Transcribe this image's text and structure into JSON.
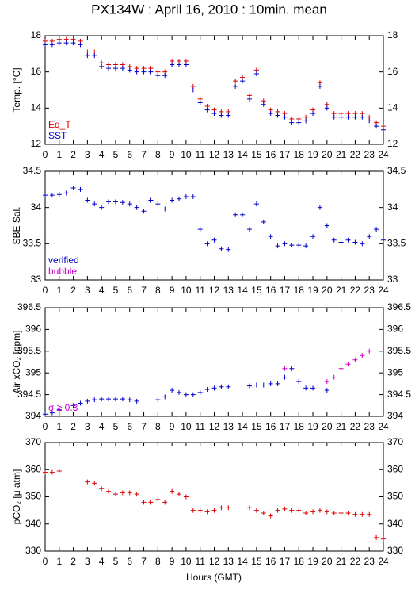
{
  "chart_data": [
    {
      "type": "scatter",
      "title": "PX134W : April 16, 2010 : 10min. mean",
      "ylabel": "Temp. [°C]",
      "x": [
        0,
        0.5,
        1,
        1.5,
        2,
        2.5,
        3,
        3.5,
        4,
        4.5,
        5,
        5.5,
        6,
        6.5,
        7,
        7.5,
        8,
        8.5,
        9,
        9.5,
        10,
        10.5,
        11,
        11.5,
        12,
        12.5,
        13,
        13.5,
        14,
        14.5,
        15,
        15.5,
        16,
        16.5,
        17,
        17.5,
        18,
        18.5,
        19,
        19.5,
        20,
        20.5,
        21,
        21.5,
        22,
        22.5,
        23,
        23.5,
        24
      ],
      "xlim": [
        0,
        24
      ],
      "xticks": [
        0,
        1,
        2,
        3,
        4,
        5,
        6,
        7,
        8,
        9,
        10,
        11,
        12,
        13,
        14,
        15,
        16,
        17,
        18,
        19,
        20,
        21,
        22,
        23,
        24
      ],
      "ylim": [
        12,
        18
      ],
      "yticks": [
        12,
        14,
        16,
        18
      ],
      "series": [
        {
          "name": "Eq_T",
          "color": "#dd0000",
          "values": [
            17.7,
            17.7,
            17.8,
            17.8,
            17.8,
            17.7,
            17.1,
            17.1,
            16.5,
            16.4,
            16.4,
            16.4,
            16.3,
            16.2,
            16.2,
            16.2,
            16.0,
            16.0,
            16.6,
            16.6,
            16.6,
            15.2,
            14.5,
            14.1,
            13.9,
            13.8,
            13.8,
            15.5,
            15.7,
            14.7,
            16.1,
            14.4,
            13.9,
            13.8,
            13.7,
            13.4,
            13.4,
            13.5,
            13.9,
            15.4,
            14.2,
            13.7,
            13.7,
            13.7,
            13.7,
            13.7,
            13.5,
            13.2,
            13.0
          ]
        },
        {
          "name": "SST",
          "color": "#0000cc",
          "values": [
            17.5,
            17.5,
            17.6,
            17.6,
            17.6,
            17.5,
            16.9,
            16.9,
            16.3,
            16.2,
            16.2,
            16.2,
            16.1,
            16.0,
            16.0,
            16.0,
            15.8,
            15.8,
            16.4,
            16.4,
            16.4,
            15.0,
            14.3,
            13.9,
            13.7,
            13.6,
            13.6,
            15.2,
            15.5,
            14.5,
            15.9,
            14.2,
            13.7,
            13.6,
            13.5,
            13.2,
            13.2,
            13.3,
            13.7,
            15.2,
            14.0,
            13.5,
            13.5,
            13.5,
            13.5,
            13.5,
            13.3,
            13.0,
            12.8
          ]
        }
      ]
    },
    {
      "type": "scatter",
      "ylabel": "SBE Sal.",
      "x": [
        0,
        0.5,
        1,
        1.5,
        2,
        2.5,
        3,
        3.5,
        4,
        4.5,
        5,
        5.5,
        6,
        6.5,
        7,
        7.5,
        8,
        8.5,
        9,
        9.5,
        10,
        10.5,
        11,
        11.5,
        12,
        12.5,
        13,
        13.5,
        14,
        14.5,
        15,
        15.5,
        16,
        16.5,
        17,
        17.5,
        18,
        18.5,
        19,
        19.5,
        20,
        20.5,
        21,
        21.5,
        22,
        22.5,
        23,
        23.5,
        24
      ],
      "xlim": [
        0,
        24
      ],
      "xticks": [
        0,
        1,
        2,
        3,
        4,
        5,
        6,
        7,
        8,
        9,
        10,
        11,
        12,
        13,
        14,
        15,
        16,
        17,
        18,
        19,
        20,
        21,
        22,
        23,
        24
      ],
      "ylim": [
        33,
        34.5
      ],
      "yticks": [
        33,
        33.5,
        34,
        34.5
      ],
      "series": [
        {
          "name": "verified",
          "color": "#0000cc",
          "values": [
            34.17,
            34.17,
            34.18,
            34.2,
            34.27,
            34.25,
            34.1,
            34.05,
            34.0,
            34.08,
            34.08,
            34.07,
            34.05,
            34.0,
            33.95,
            34.1,
            34.05,
            33.98,
            34.1,
            34.12,
            34.15,
            34.15,
            33.7,
            33.5,
            33.55,
            33.43,
            33.42,
            33.9,
            33.9,
            33.7,
            34.05,
            33.8,
            33.6,
            33.47,
            33.5,
            33.48,
            33.48,
            33.47,
            33.6,
            34.0,
            33.75,
            33.55,
            33.52,
            33.55,
            33.52,
            33.5,
            33.6,
            33.7,
            33.55
          ]
        },
        {
          "name": "bubble",
          "color": "#cc00cc",
          "values": [
            null,
            null,
            null,
            null,
            null,
            null,
            null,
            null,
            null,
            null,
            null,
            null,
            null,
            null,
            null,
            null,
            null,
            null,
            null,
            null,
            null,
            null,
            null,
            null,
            null,
            null,
            null,
            null,
            null,
            null,
            null,
            null,
            null,
            null,
            null,
            null,
            null,
            null,
            null,
            null,
            null,
            null,
            null,
            null,
            null,
            null,
            null,
            null,
            null
          ]
        }
      ]
    },
    {
      "type": "scatter",
      "ylabel": "Air xCO₂ [ppm]",
      "x": [
        0,
        0.5,
        1,
        1.5,
        2,
        2.5,
        3,
        3.5,
        4,
        4.5,
        5,
        5.5,
        6,
        6.5,
        7,
        7.5,
        8,
        8.5,
        9,
        9.5,
        10,
        10.5,
        11,
        11.5,
        12,
        12.5,
        13,
        13.5,
        14,
        14.5,
        15,
        15.5,
        16,
        16.5,
        17,
        17.5,
        18,
        18.5,
        19,
        19.5,
        20,
        20.5,
        21,
        21.5,
        22,
        22.5,
        23,
        23.5,
        24
      ],
      "xlim": [
        0,
        24
      ],
      "xticks": [
        0,
        1,
        2,
        3,
        4,
        5,
        6,
        7,
        8,
        9,
        10,
        11,
        12,
        13,
        14,
        15,
        16,
        17,
        18,
        19,
        20,
        21,
        22,
        23,
        24
      ],
      "ylim": [
        394,
        396.5
      ],
      "yticks": [
        394,
        394.5,
        395,
        395.5,
        396,
        396.5
      ],
      "series": [
        {
          "color": "#0000cc",
          "values": [
            394.05,
            394.08,
            394.15,
            null,
            394.25,
            394.3,
            394.35,
            394.38,
            394.4,
            394.4,
            394.4,
            394.4,
            394.38,
            394.35,
            null,
            null,
            394.38,
            394.45,
            394.6,
            394.55,
            394.5,
            394.5,
            394.55,
            394.62,
            394.65,
            394.68,
            394.68,
            null,
            null,
            394.7,
            394.72,
            394.72,
            394.75,
            394.75,
            394.9,
            395.1,
            394.8,
            394.65,
            394.65,
            null,
            394.6,
            null,
            null,
            null,
            null,
            null,
            null,
            null,
            null
          ]
        },
        {
          "name": "σ ≥ 0.3",
          "color": "#cc00cc",
          "values": [
            null,
            null,
            null,
            null,
            null,
            null,
            null,
            null,
            null,
            null,
            null,
            null,
            null,
            null,
            null,
            null,
            null,
            null,
            null,
            null,
            null,
            null,
            null,
            null,
            null,
            null,
            null,
            null,
            null,
            null,
            null,
            null,
            null,
            null,
            395.1,
            null,
            null,
            null,
            null,
            null,
            394.8,
            394.9,
            395.1,
            395.2,
            395.3,
            395.4,
            395.5,
            null,
            null
          ]
        }
      ]
    },
    {
      "type": "scatter",
      "ylabel": "pCO₂ [μ atm]",
      "xlabel": "Hours (GMT)",
      "x": [
        0,
        0.5,
        1,
        1.5,
        2,
        2.5,
        3,
        3.5,
        4,
        4.5,
        5,
        5.5,
        6,
        6.5,
        7,
        7.5,
        8,
        8.5,
        9,
        9.5,
        10,
        10.5,
        11,
        11.5,
        12,
        12.5,
        13,
        13.5,
        14,
        14.5,
        15,
        15.5,
        16,
        16.5,
        17,
        17.5,
        18,
        18.5,
        19,
        19.5,
        20,
        20.5,
        21,
        21.5,
        22,
        22.5,
        23,
        23.5,
        24
      ],
      "xlim": [
        0,
        24
      ],
      "xticks": [
        0,
        1,
        2,
        3,
        4,
        5,
        6,
        7,
        8,
        9,
        10,
        11,
        12,
        13,
        14,
        15,
        16,
        17,
        18,
        19,
        20,
        21,
        22,
        23,
        24
      ],
      "ylim": [
        330,
        370
      ],
      "yticks": [
        330,
        340,
        350,
        360,
        370
      ],
      "series": [
        {
          "color": "#dd0000",
          "values": [
            359,
            359,
            359.5,
            null,
            null,
            null,
            355.5,
            355,
            353,
            352,
            351,
            351.5,
            351.5,
            351,
            348,
            348,
            349,
            348,
            352,
            351,
            350,
            345,
            345,
            344.5,
            345,
            346,
            346,
            null,
            null,
            346,
            345,
            344,
            343,
            345,
            345.5,
            345,
            345,
            344,
            344.5,
            345,
            344.5,
            344,
            344,
            344,
            343.5,
            343.5,
            343.5,
            335,
            334.5
          ]
        }
      ]
    }
  ]
}
